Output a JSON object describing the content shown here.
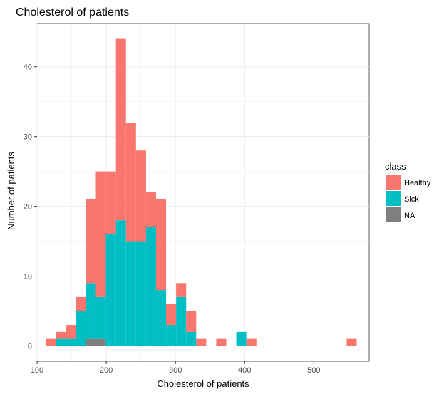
{
  "chart_data": {
    "type": "bar",
    "title": "Cholesterol of patients",
    "xlabel": "Cholesterol of patients",
    "ylabel": "Number of patients",
    "xlim": [
      100,
      580
    ],
    "ylim": [
      -2.2,
      46.2
    ],
    "x_ticks": [
      100,
      200,
      300,
      400,
      500
    ],
    "y_ticks": [
      0,
      10,
      20,
      30,
      40
    ],
    "grid": true,
    "stacked": true,
    "bin_width": 14.5,
    "bin_starts": [
      112.5,
      127,
      141.5,
      156,
      170.5,
      185,
      199.5,
      214,
      228.5,
      243,
      257.5,
      272,
      286.5,
      301,
      315.5,
      330,
      344.5,
      359,
      373.5,
      388,
      402.5,
      417,
      431.5,
      446,
      460.5,
      475,
      489.5,
      504,
      518.5,
      533,
      547.5
    ],
    "series": [
      {
        "name": "NA",
        "color": "#7f7f7f",
        "values": [
          0,
          0,
          0,
          0,
          1,
          1,
          0,
          0,
          0,
          0,
          0,
          0,
          0,
          0,
          0,
          0,
          0,
          0,
          0,
          0,
          0,
          0,
          0,
          0,
          0,
          0,
          0,
          0,
          0,
          0,
          0
        ]
      },
      {
        "name": "Sick",
        "color": "#00bfc4",
        "values": [
          0,
          1,
          1,
          5,
          8,
          6,
          16,
          18,
          15,
          15,
          17,
          8,
          3,
          7,
          2,
          0,
          0,
          0,
          0,
          2,
          0,
          0,
          0,
          0,
          0,
          0,
          0,
          0,
          0,
          0,
          0
        ]
      },
      {
        "name": "Healthy",
        "color": "#f8766d",
        "values": [
          1,
          1,
          2,
          2,
          12,
          18,
          9,
          26,
          17,
          13,
          5,
          13,
          3,
          2,
          3,
          1,
          0,
          1,
          0,
          0,
          1,
          0,
          0,
          0,
          0,
          0,
          0,
          0,
          0,
          0,
          1
        ]
      }
    ],
    "legend": {
      "title": "class",
      "position": "right",
      "entries": [
        {
          "label": "Healthy",
          "color": "#f8766d"
        },
        {
          "label": "Sick",
          "color": "#00bfc4"
        },
        {
          "label": "NA",
          "color": "#7f7f7f"
        }
      ]
    }
  }
}
